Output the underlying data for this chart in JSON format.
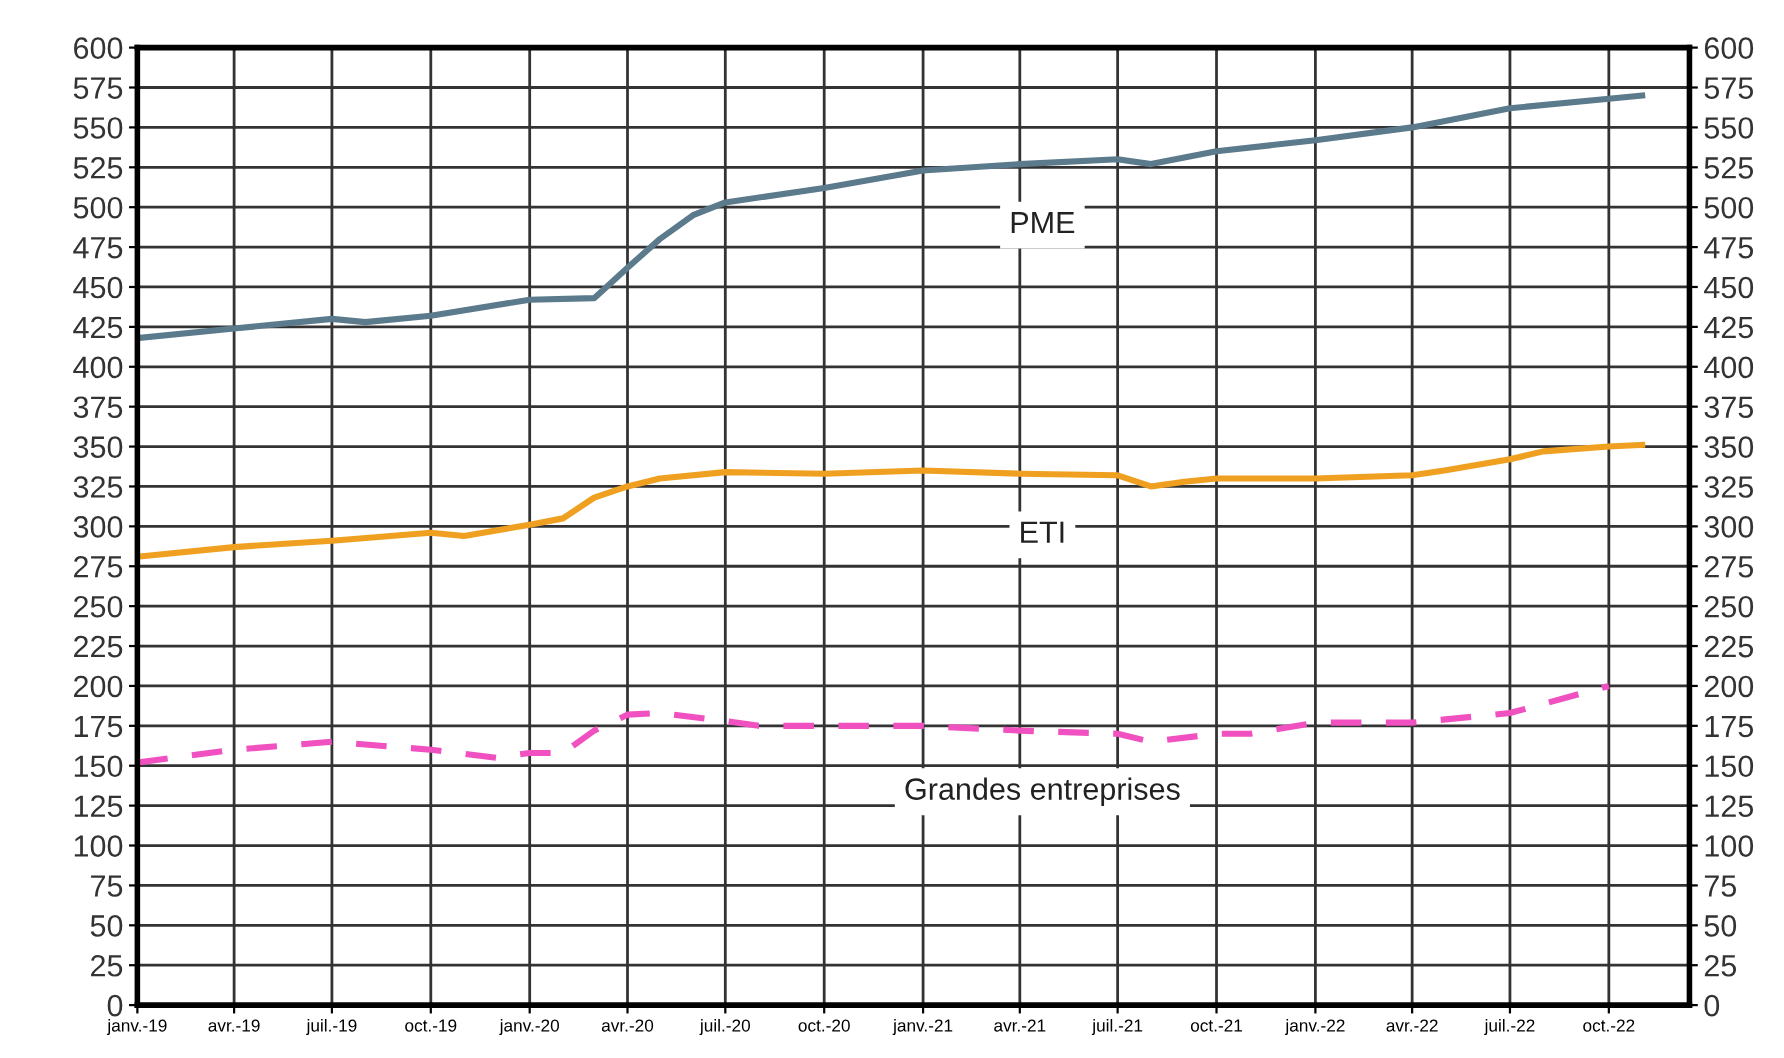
{
  "chart_data": {
    "type": "line",
    "grid": true,
    "xlim": [
      "2019-01-01",
      "2022-12-15"
    ],
    "xticks": [
      {
        "value": "2019-01",
        "label": "janv.-19"
      },
      {
        "value": "2019-04",
        "label": "avr.-19"
      },
      {
        "value": "2019-07",
        "label": "juil.-19"
      },
      {
        "value": "2019-10",
        "label": "oct.-19"
      },
      {
        "value": "2020-01",
        "label": "janv.-20"
      },
      {
        "value": "2020-04",
        "label": "avr.-20"
      },
      {
        "value": "2020-07",
        "label": "juil.-20"
      },
      {
        "value": "2020-10",
        "label": "oct.-20"
      },
      {
        "value": "2021-01",
        "label": "janv.-21"
      },
      {
        "value": "2021-04",
        "label": "avr.-21"
      },
      {
        "value": "2021-07",
        "label": "juil.-21"
      },
      {
        "value": "2021-10",
        "label": "oct.-21"
      },
      {
        "value": "2022-01",
        "label": "janv.-22"
      },
      {
        "value": "2022-04",
        "label": "avr.-22"
      },
      {
        "value": "2022-07",
        "label": "juil.-22"
      },
      {
        "value": "2022-10",
        "label": "oct.-22"
      }
    ],
    "ylim": [
      0,
      600
    ],
    "yticks": [
      0,
      25,
      50,
      75,
      100,
      125,
      150,
      175,
      200,
      225,
      250,
      275,
      300,
      325,
      350,
      375,
      400,
      425,
      450,
      475,
      500,
      525,
      550,
      575,
      600
    ],
    "y2lim": [
      0,
      600
    ],
    "y2ticks": [
      0,
      25,
      50,
      75,
      100,
      125,
      150,
      175,
      200,
      225,
      250,
      275,
      300,
      325,
      350,
      375,
      400,
      425,
      450,
      475,
      500,
      525,
      550,
      575,
      600
    ],
    "series": [
      {
        "name": "PME",
        "color": "#5b7a8c",
        "x": [
          "2019-01",
          "2019-04",
          "2019-07",
          "2019-08",
          "2019-10",
          "2020-01",
          "2020-03",
          "2020-04",
          "2020-05",
          "2020-06",
          "2020-07",
          "2020-10",
          "2021-01",
          "2021-04",
          "2021-07",
          "2021-08",
          "2021-10",
          "2022-01",
          "2022-04",
          "2022-07",
          "2022-10",
          "2022-11"
        ],
        "values": [
          418,
          424,
          430,
          428,
          432,
          442,
          443,
          462,
          480,
          495,
          503,
          512,
          523,
          527,
          530,
          527,
          535,
          542,
          550,
          562,
          568,
          570
        ]
      },
      {
        "name": "ETI",
        "color": "#f0a020",
        "x": [
          "2019-01",
          "2019-04",
          "2019-07",
          "2019-10",
          "2019-11",
          "2020-01",
          "2020-02",
          "2020-03",
          "2020-04",
          "2020-05",
          "2020-07",
          "2020-10",
          "2021-01",
          "2021-04",
          "2021-07",
          "2021-08",
          "2021-09",
          "2021-10",
          "2022-01",
          "2022-04",
          "2022-05",
          "2022-07",
          "2022-08",
          "2022-10",
          "2022-11"
        ],
        "values": [
          281,
          287,
          291,
          296,
          294,
          301,
          305,
          318,
          325,
          330,
          334,
          333,
          335,
          333,
          332,
          325,
          328,
          330,
          330,
          332,
          335,
          342,
          347,
          350,
          351
        ]
      },
      {
        "name": "Grandes entreprises",
        "color": "#f050c0",
        "line_style": "dashed",
        "x": [
          "2019-01",
          "2019-04",
          "2019-07",
          "2019-10",
          "2019-12",
          "2020-01",
          "2020-02",
          "2020-03",
          "2020-04",
          "2020-05",
          "2020-07",
          "2020-08",
          "2020-10",
          "2021-01",
          "2021-04",
          "2021-07",
          "2021-08",
          "2021-10",
          "2021-11",
          "2022-01",
          "2022-04",
          "2022-07",
          "2022-10"
        ],
        "values": [
          152,
          160,
          165,
          160,
          155,
          158,
          158,
          172,
          182,
          183,
          178,
          175,
          175,
          175,
          172,
          170,
          165,
          170,
          170,
          177,
          177,
          183,
          200
        ]
      }
    ]
  }
}
